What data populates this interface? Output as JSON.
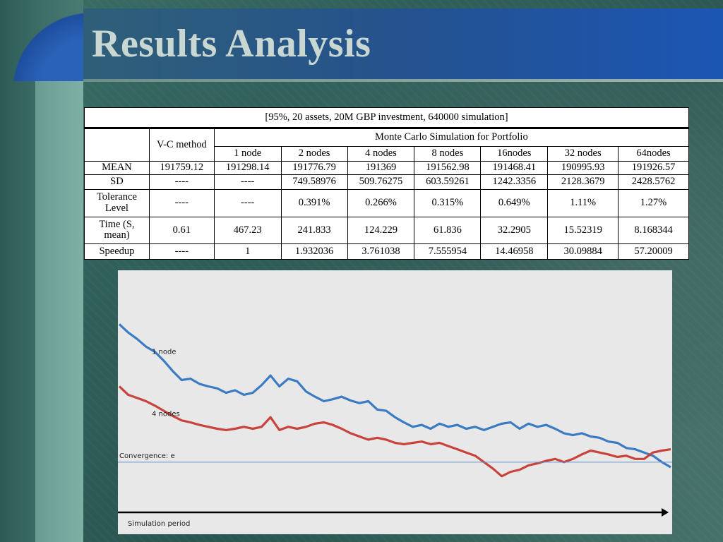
{
  "slide": {
    "title": "Results Analysis"
  },
  "table": {
    "caption": "[95%, 20 assets, 20M GBP investment, 640000 simulation]",
    "vc_header": "V-C method",
    "mc_header": "Monte Carlo Simulation for Portfolio",
    "node_headers": [
      "1 node",
      "2 nodes",
      "4 nodes",
      "8 nodes",
      "16nodes",
      "32 nodes",
      "64nodes"
    ],
    "rows": [
      {
        "label": "MEAN",
        "vc": "191759.12",
        "values": [
          "191298.14",
          "191776.79",
          "191369",
          "191562.98",
          "191468.41",
          "190995.93",
          "191926.57"
        ]
      },
      {
        "label": "SD",
        "vc": "----",
        "values": [
          "----",
          "749.58976",
          "509.76275",
          "603.59261",
          "1242.3356",
          "2128.3679",
          "2428.5762"
        ]
      },
      {
        "label": "Tolerance Level",
        "vc": "----",
        "values": [
          "----",
          "0.391%",
          "0.266%",
          "0.315%",
          "0.649%",
          "1.11%",
          "1.27%"
        ]
      },
      {
        "label": "Time (S, mean)",
        "vc": "0.61",
        "values": [
          "467.23",
          "241.833",
          "124.229",
          "61.836",
          "32.2905",
          "15.52319",
          "8.168344"
        ]
      },
      {
        "label": "Speedup",
        "vc": "----",
        "values": [
          "1",
          "1.932036",
          "3.761038",
          "7.555954",
          "14.46958",
          "30.09884",
          "57.20009"
        ]
      }
    ]
  },
  "chart_data": {
    "type": "line",
    "xlabel": "Simulation period",
    "ylabel": "",
    "convergence_label": "Convergence: e",
    "convergence_value": 0.0,
    "ylim": [
      -0.75,
      2.55
    ],
    "series": [
      {
        "name": "1 node",
        "color": "#3b7bc4",
        "values": [
          2.15,
          2.02,
          1.92,
          1.8,
          1.72,
          1.58,
          1.42,
          1.28,
          1.3,
          1.22,
          1.18,
          1.15,
          1.08,
          1.12,
          1.05,
          1.08,
          1.2,
          1.35,
          1.18,
          1.3,
          1.26,
          1.1,
          1.02,
          0.95,
          0.98,
          1.02,
          0.96,
          0.92,
          0.95,
          0.82,
          0.8,
          0.7,
          0.62,
          0.55,
          0.58,
          0.52,
          0.6,
          0.55,
          0.58,
          0.52,
          0.55,
          0.5,
          0.55,
          0.6,
          0.62,
          0.52,
          0.6,
          0.55,
          0.58,
          0.52,
          0.45,
          0.42,
          0.45,
          0.4,
          0.38,
          0.32,
          0.3,
          0.22,
          0.2,
          0.15,
          0.1,
          0.0,
          -0.08
        ]
      },
      {
        "name": "4 nodes",
        "color": "#c9423c",
        "values": [
          1.18,
          1.05,
          1.0,
          0.95,
          0.88,
          0.8,
          0.72,
          0.65,
          0.62,
          0.58,
          0.55,
          0.52,
          0.5,
          0.52,
          0.55,
          0.52,
          0.55,
          0.7,
          0.5,
          0.55,
          0.52,
          0.55,
          0.6,
          0.62,
          0.58,
          0.52,
          0.45,
          0.4,
          0.35,
          0.38,
          0.35,
          0.3,
          0.28,
          0.3,
          0.32,
          0.28,
          0.3,
          0.25,
          0.2,
          0.15,
          0.1,
          0.0,
          -0.1,
          -0.22,
          -0.15,
          -0.12,
          -0.05,
          -0.02,
          0.02,
          0.05,
          0.0,
          0.05,
          0.12,
          0.18,
          0.15,
          0.12,
          0.08,
          0.1,
          0.05,
          0.05,
          0.15,
          0.18,
          0.2
        ]
      }
    ]
  }
}
